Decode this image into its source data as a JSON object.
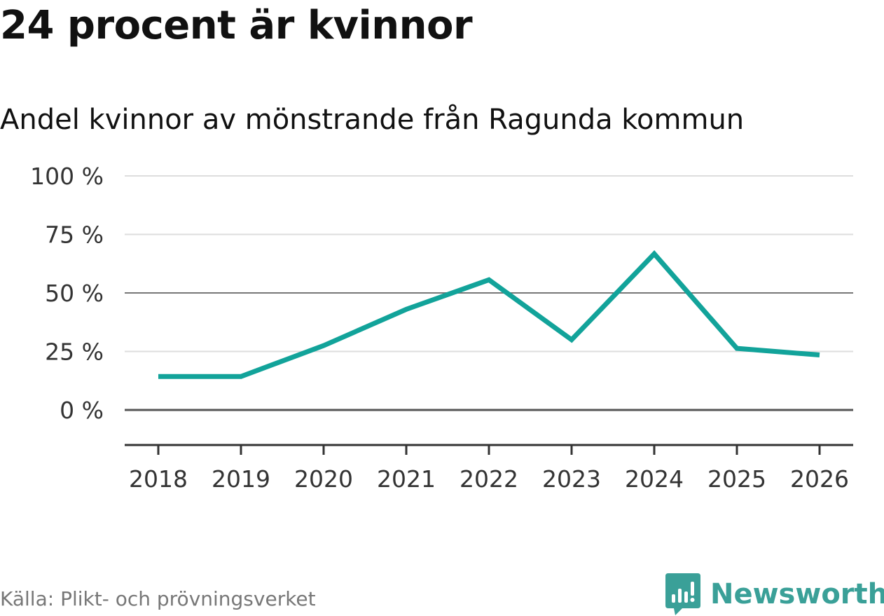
{
  "title": "24 procent är kvinnor",
  "subtitle": "Andel kvinnor av mönstrande från Ragunda kommun",
  "source": "Källa: Plikt- och prövningsverket",
  "brand": {
    "name": "Newsworthy",
    "icon": "newsworthy-logo-icon",
    "color": "#3aa098"
  },
  "colors": {
    "line": "#12a39a",
    "grid": "#dddddd",
    "zero_line": "#555555",
    "axis": "#333333"
  },
  "chart_data": {
    "type": "line",
    "title": "24 procent är kvinnor",
    "subtitle": "Andel kvinnor av mönstrande från Ragunda kommun",
    "xlabel": "",
    "ylabel": "",
    "categories": [
      "2018",
      "2019",
      "2020",
      "2021",
      "2022",
      "2023",
      "2024",
      "2025",
      "2026"
    ],
    "series": [
      {
        "name": "Andel kvinnor",
        "values": [
          14.3,
          14.3,
          27.5,
          43,
          55.6,
          30,
          66.7,
          26.3,
          23.5
        ]
      }
    ],
    "ylim": [
      -15,
      100
    ],
    "yticks": [
      0,
      25,
      50,
      75,
      100
    ],
    "ytick_labels": [
      "0 %",
      "25 %",
      "50 %",
      "75 %",
      "100 %"
    ],
    "grid": true,
    "source": "Källa: Plikt- och prövningsverket"
  }
}
